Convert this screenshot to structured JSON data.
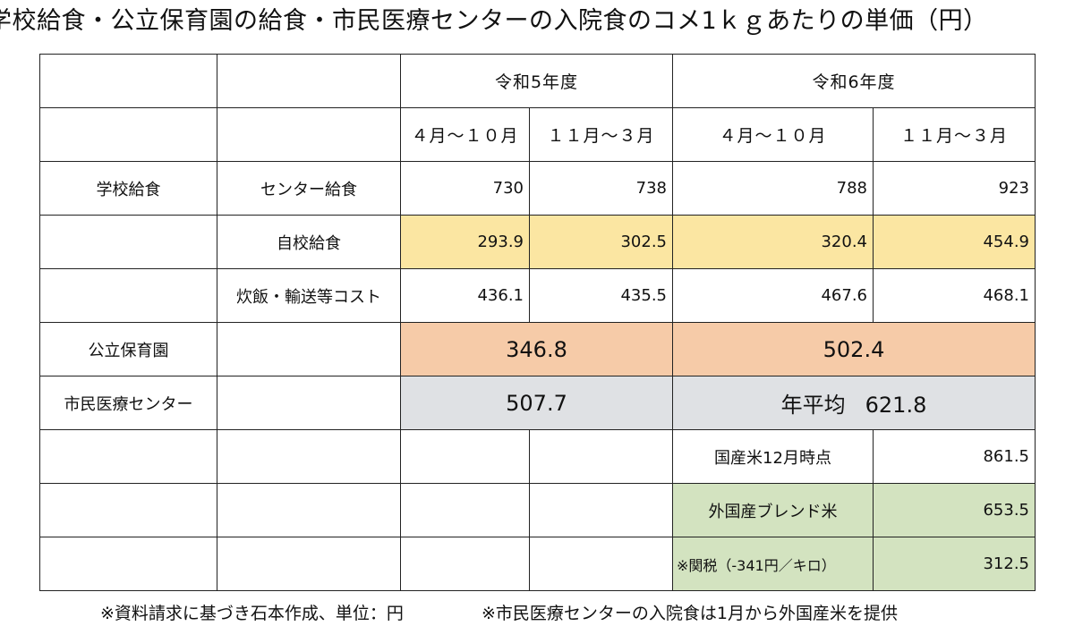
{
  "title": "学校給食・公立保育園の給食・市民医療センターの入院食のコメ1ｋｇあたりの単価（円）",
  "headers": {
    "fy5": "令和5年度",
    "fy6": "令和6年度",
    "p1": "４月～１０月",
    "p2": "１１月～３月",
    "p3": "４月～１０月",
    "p4": "１１月～３月"
  },
  "rows": {
    "school": {
      "label": "学校給食",
      "center": {
        "label": "センター給食",
        "values": [
          "730",
          "738",
          "788",
          "923"
        ]
      },
      "own": {
        "label": "自校給食",
        "values": [
          "293.9",
          "302.5",
          "320.4",
          "454.9"
        ]
      },
      "cost": {
        "label": "炊飯・輸送等コスト",
        "values": [
          "436.1",
          "435.5",
          "467.6",
          "468.1"
        ]
      }
    },
    "nursery": {
      "label": "公立保育園",
      "fy5": "346.8",
      "fy6": "502.4"
    },
    "medical": {
      "label": "市民医療センター",
      "fy5": "507.7",
      "avg_label": "年平均",
      "fy6": "621.8"
    },
    "domestic": {
      "label": "国産米12月時点",
      "value": "861.5"
    },
    "foreign": {
      "label": "外国産ブレンド米",
      "value": "653.5"
    },
    "tariff": {
      "label": "※関税（-341円／キロ）",
      "value": "312.5"
    }
  },
  "footer": {
    "note1": "※資料請求に基づき石本作成、単位：円",
    "note2": "※市民医療センターの入院食は1月から外国産米を提供"
  },
  "colors": {
    "yellow": "#fbe6a2",
    "orange": "#f6cba8",
    "gray": "#dfe1e4",
    "green": "#d3e3c0"
  }
}
